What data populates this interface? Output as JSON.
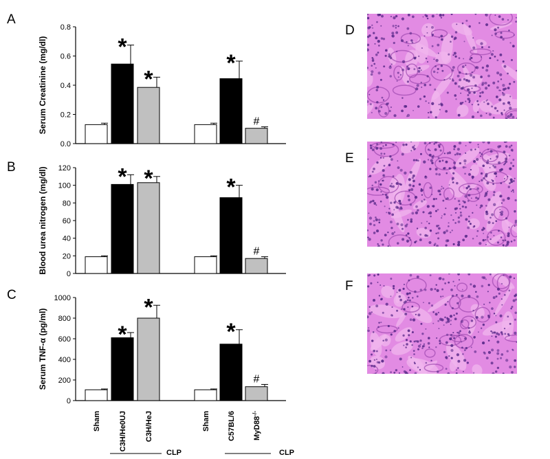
{
  "panel_letters": [
    "A",
    "B",
    "C",
    "D",
    "E",
    "F"
  ],
  "colors": {
    "sham": "#ffffff",
    "clp_main": "#000000",
    "clp_alt": "#c0c0c0",
    "tissue_base": "#e28be3",
    "nuclei": "#5a2a8a"
  },
  "groups": [
    {
      "categories": [
        "Sham",
        "C3H/He0UJ",
        "C3H/HeJ"
      ],
      "clp_label": "CLP"
    },
    {
      "categories": [
        "Sham",
        "C57BL/6",
        "MyD88"
      ],
      "category_sup": "-/-",
      "clp_label": "CLP"
    }
  ],
  "chart_data": [
    {
      "type": "bar",
      "panel": "A",
      "ylabel": "Serum Creatinine (mg/dl)",
      "ylim": [
        0,
        0.8
      ],
      "yticks": [
        "0.0",
        "0.2",
        "0.4",
        "0.6",
        "0.8"
      ],
      "tick_values": [
        0,
        0.2,
        0.4,
        0.6,
        0.8
      ],
      "values": [
        0.13,
        0.545,
        0.385,
        0.13,
        0.445,
        0.105
      ],
      "errors": [
        0.01,
        0.13,
        0.07,
        0.01,
        0.12,
        0.01
      ],
      "marks": [
        "",
        "*",
        "*",
        "",
        "*",
        "#"
      ]
    },
    {
      "type": "bar",
      "panel": "B",
      "ylabel": "Blood urea nitrogen (mg/dl)",
      "ylim": [
        0,
        120
      ],
      "yticks": [
        "0",
        "20",
        "40",
        "60",
        "80",
        "100",
        "120"
      ],
      "tick_values": [
        0,
        20,
        40,
        60,
        80,
        100,
        120
      ],
      "values": [
        19,
        101,
        103,
        19,
        86,
        17
      ],
      "errors": [
        1,
        11,
        7,
        1,
        14,
        2
      ],
      "marks": [
        "",
        "*",
        "*",
        "",
        "*",
        "#"
      ]
    },
    {
      "type": "bar",
      "panel": "C",
      "ylabel": "Serum TNF-α (pg/ml)",
      "ylim": [
        0,
        1000
      ],
      "yticks": [
        "0",
        "200",
        "400",
        "600",
        "800",
        "1000"
      ],
      "tick_values": [
        0,
        200,
        400,
        600,
        800,
        1000
      ],
      "values": [
        105,
        610,
        800,
        105,
        548,
        135
      ],
      "errors": [
        8,
        50,
        125,
        8,
        140,
        22
      ],
      "marks": [
        "",
        "*",
        "*",
        "",
        "*",
        "#"
      ]
    }
  ]
}
